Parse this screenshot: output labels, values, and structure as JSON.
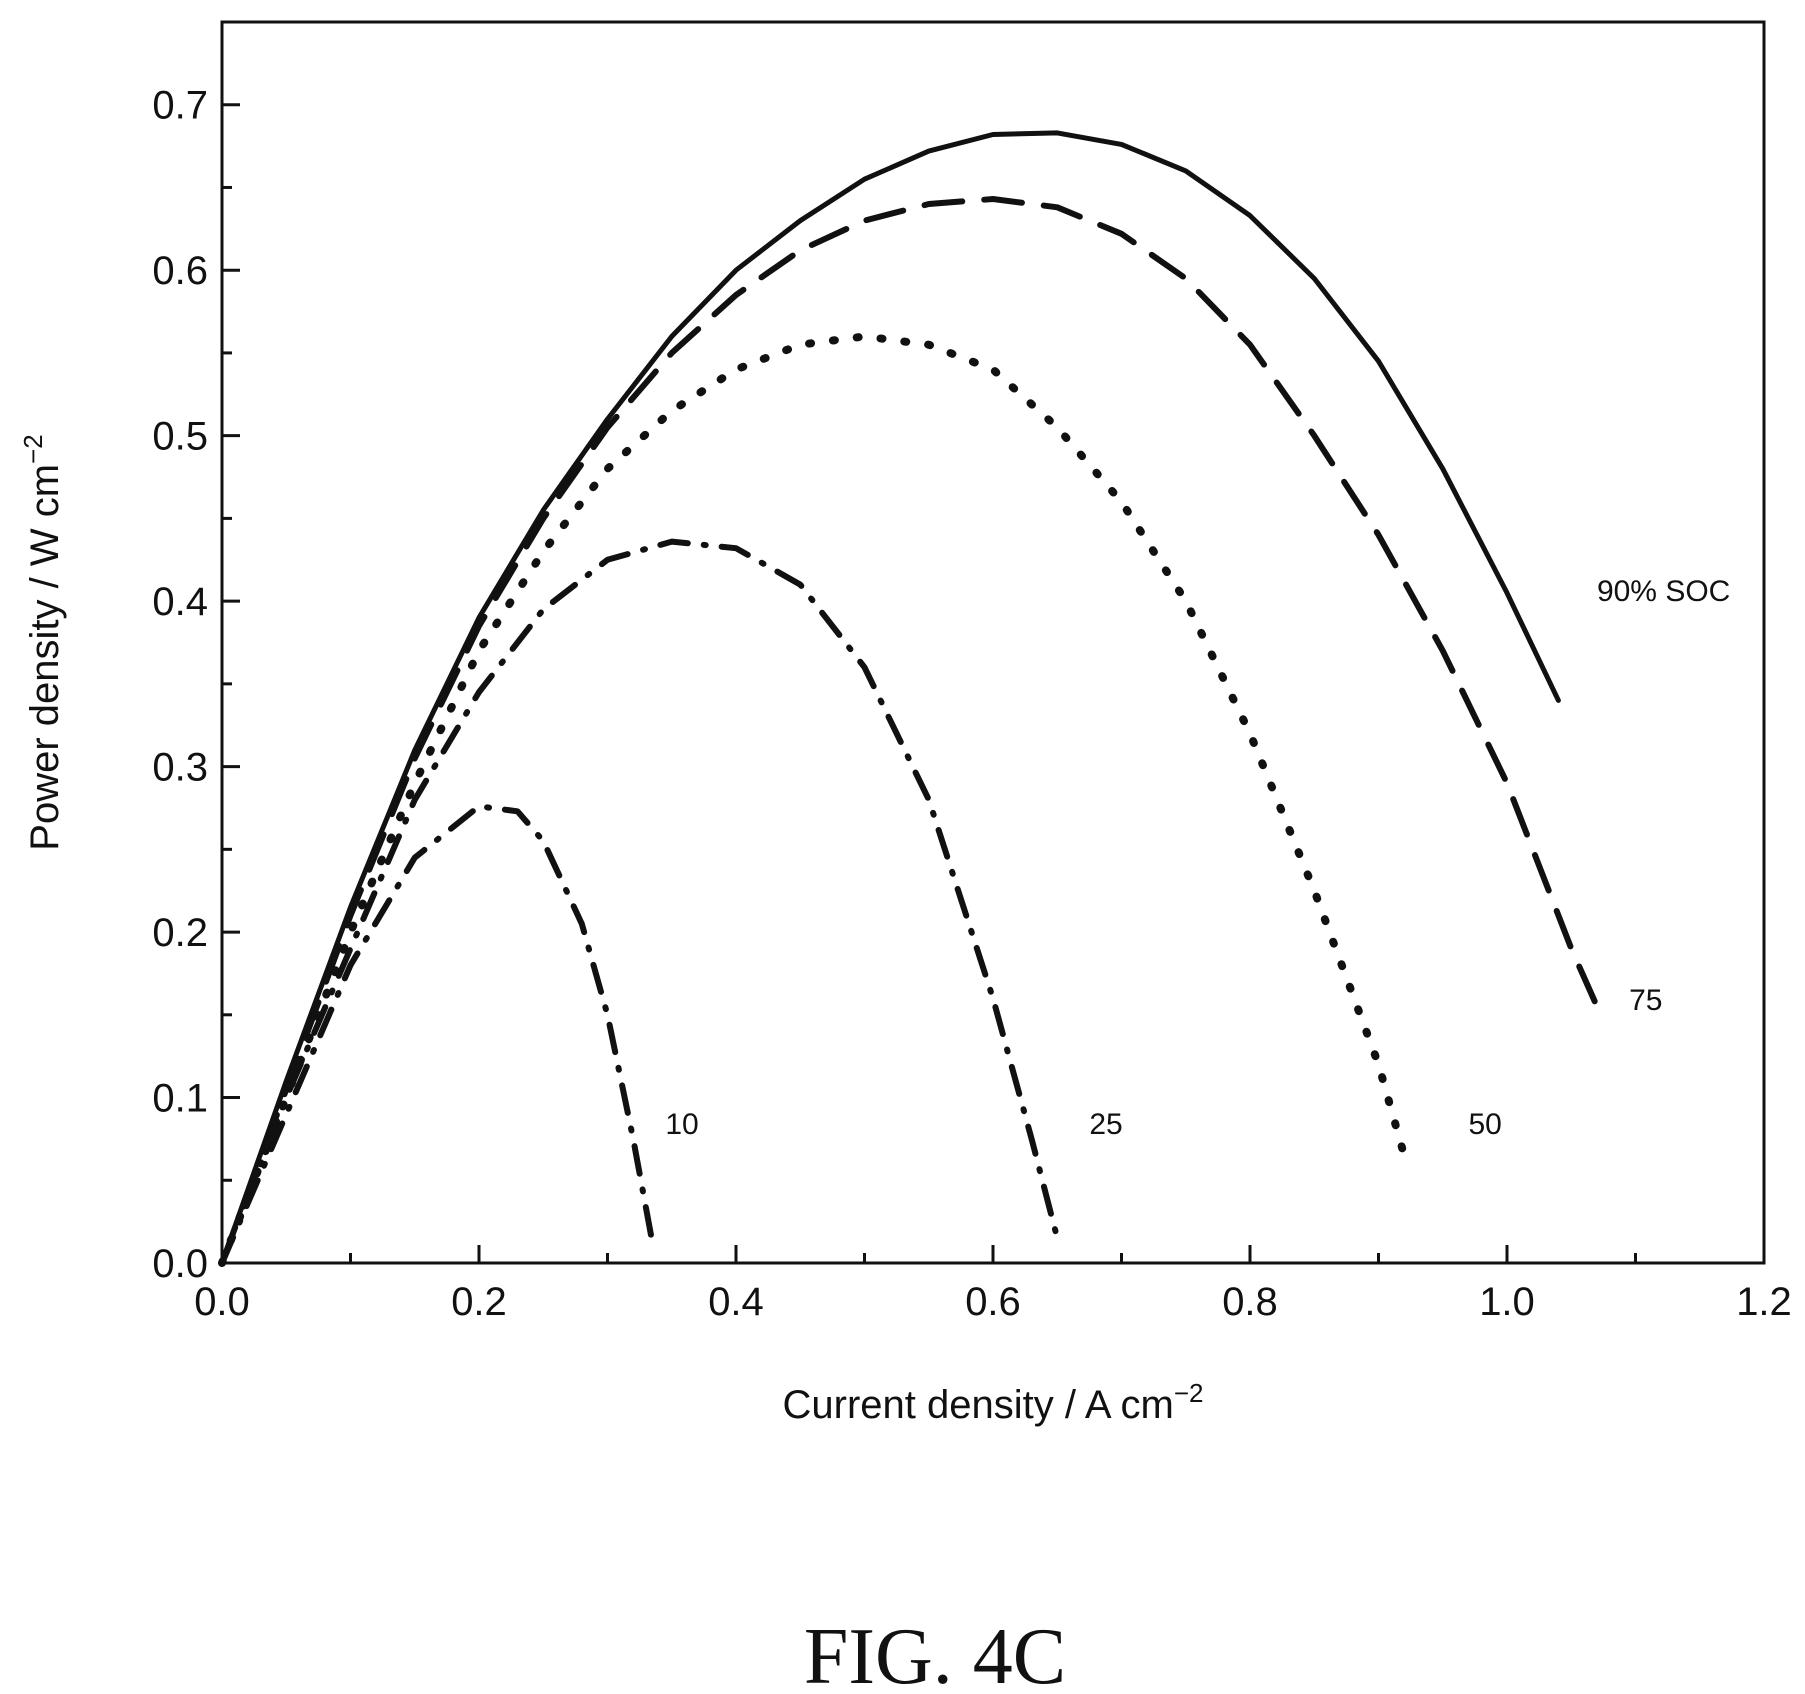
{
  "figure_caption": "FIG. 4C",
  "chart_data": {
    "type": "line",
    "title": "",
    "xlabel": "Current density / A cm",
    "xlabel_sup": "−2",
    "ylabel": "Power density / W cm",
    "ylabel_sup": "−2",
    "xlim": [
      0,
      1.2
    ],
    "ylim": [
      0,
      0.75
    ],
    "x_ticks": [
      0,
      0.2,
      0.4,
      0.6,
      0.8,
      1.0,
      1.2
    ],
    "x_tick_labels": [
      "0.0",
      "0.2",
      "0.4",
      "0.6",
      "0.8",
      "1.0",
      "1.2"
    ],
    "y_ticks": [
      0,
      0.1,
      0.2,
      0.3,
      0.4,
      0.5,
      0.6,
      0.7
    ],
    "y_tick_labels": [
      "0.0",
      "0.1",
      "0.2",
      "0.3",
      "0.4",
      "0.5",
      "0.6",
      "0.7"
    ],
    "grid": false,
    "legend": "none",
    "line_color": "#111111",
    "series": [
      {
        "name": "90% SOC",
        "line_style": "solid",
        "x": [
          0,
          0.05,
          0.1,
          0.15,
          0.2,
          0.25,
          0.3,
          0.35,
          0.4,
          0.45,
          0.5,
          0.55,
          0.6,
          0.65,
          0.7,
          0.75,
          0.8,
          0.85,
          0.9,
          0.95,
          1.0,
          1.04
        ],
        "y": [
          0,
          0.11,
          0.215,
          0.31,
          0.39,
          0.455,
          0.51,
          0.56,
          0.6,
          0.63,
          0.655,
          0.672,
          0.682,
          0.683,
          0.676,
          0.66,
          0.633,
          0.595,
          0.545,
          0.48,
          0.405,
          0.34
        ]
      },
      {
        "name": "75",
        "line_style": "dash",
        "x": [
          0,
          0.05,
          0.1,
          0.15,
          0.2,
          0.25,
          0.3,
          0.35,
          0.4,
          0.45,
          0.5,
          0.55,
          0.6,
          0.65,
          0.7,
          0.75,
          0.8,
          0.85,
          0.9,
          0.95,
          1.0,
          1.05,
          1.07
        ],
        "y": [
          0,
          0.105,
          0.21,
          0.305,
          0.385,
          0.45,
          0.505,
          0.55,
          0.585,
          0.612,
          0.63,
          0.64,
          0.643,
          0.638,
          0.622,
          0.595,
          0.555,
          0.5,
          0.44,
          0.37,
          0.29,
          0.19,
          0.155
        ]
      },
      {
        "name": "50",
        "line_style": "dot",
        "x": [
          0,
          0.05,
          0.1,
          0.15,
          0.2,
          0.25,
          0.3,
          0.35,
          0.4,
          0.45,
          0.5,
          0.55,
          0.6,
          0.65,
          0.7,
          0.75,
          0.8,
          0.85,
          0.9,
          0.92
        ],
        "y": [
          0,
          0.1,
          0.2,
          0.29,
          0.37,
          0.43,
          0.48,
          0.515,
          0.54,
          0.555,
          0.56,
          0.555,
          0.54,
          0.505,
          0.46,
          0.4,
          0.32,
          0.225,
          0.12,
          0.065
        ]
      },
      {
        "name": "25",
        "line_style": "dash-dot",
        "x": [
          0,
          0.05,
          0.1,
          0.15,
          0.2,
          0.25,
          0.3,
          0.35,
          0.4,
          0.45,
          0.5,
          0.55,
          0.6,
          0.63,
          0.65
        ],
        "y": [
          0,
          0.1,
          0.19,
          0.28,
          0.345,
          0.395,
          0.425,
          0.436,
          0.432,
          0.41,
          0.36,
          0.28,
          0.16,
          0.075,
          0.015
        ]
      },
      {
        "name": "10",
        "line_style": "dash-dot",
        "x": [
          0,
          0.05,
          0.1,
          0.15,
          0.2,
          0.23,
          0.25,
          0.28,
          0.3,
          0.32,
          0.335
        ],
        "y": [
          0,
          0.09,
          0.18,
          0.245,
          0.276,
          0.273,
          0.255,
          0.205,
          0.15,
          0.075,
          0.012
        ]
      }
    ],
    "annotations": [
      {
        "text": "90% SOC",
        "x": 1.07,
        "y": 0.4
      },
      {
        "text": "75",
        "x": 1.095,
        "y": 0.153
      },
      {
        "text": "50",
        "x": 0.97,
        "y": 0.078
      },
      {
        "text": "25",
        "x": 0.675,
        "y": 0.078
      },
      {
        "text": "10",
        "x": 0.345,
        "y": 0.078
      }
    ]
  }
}
